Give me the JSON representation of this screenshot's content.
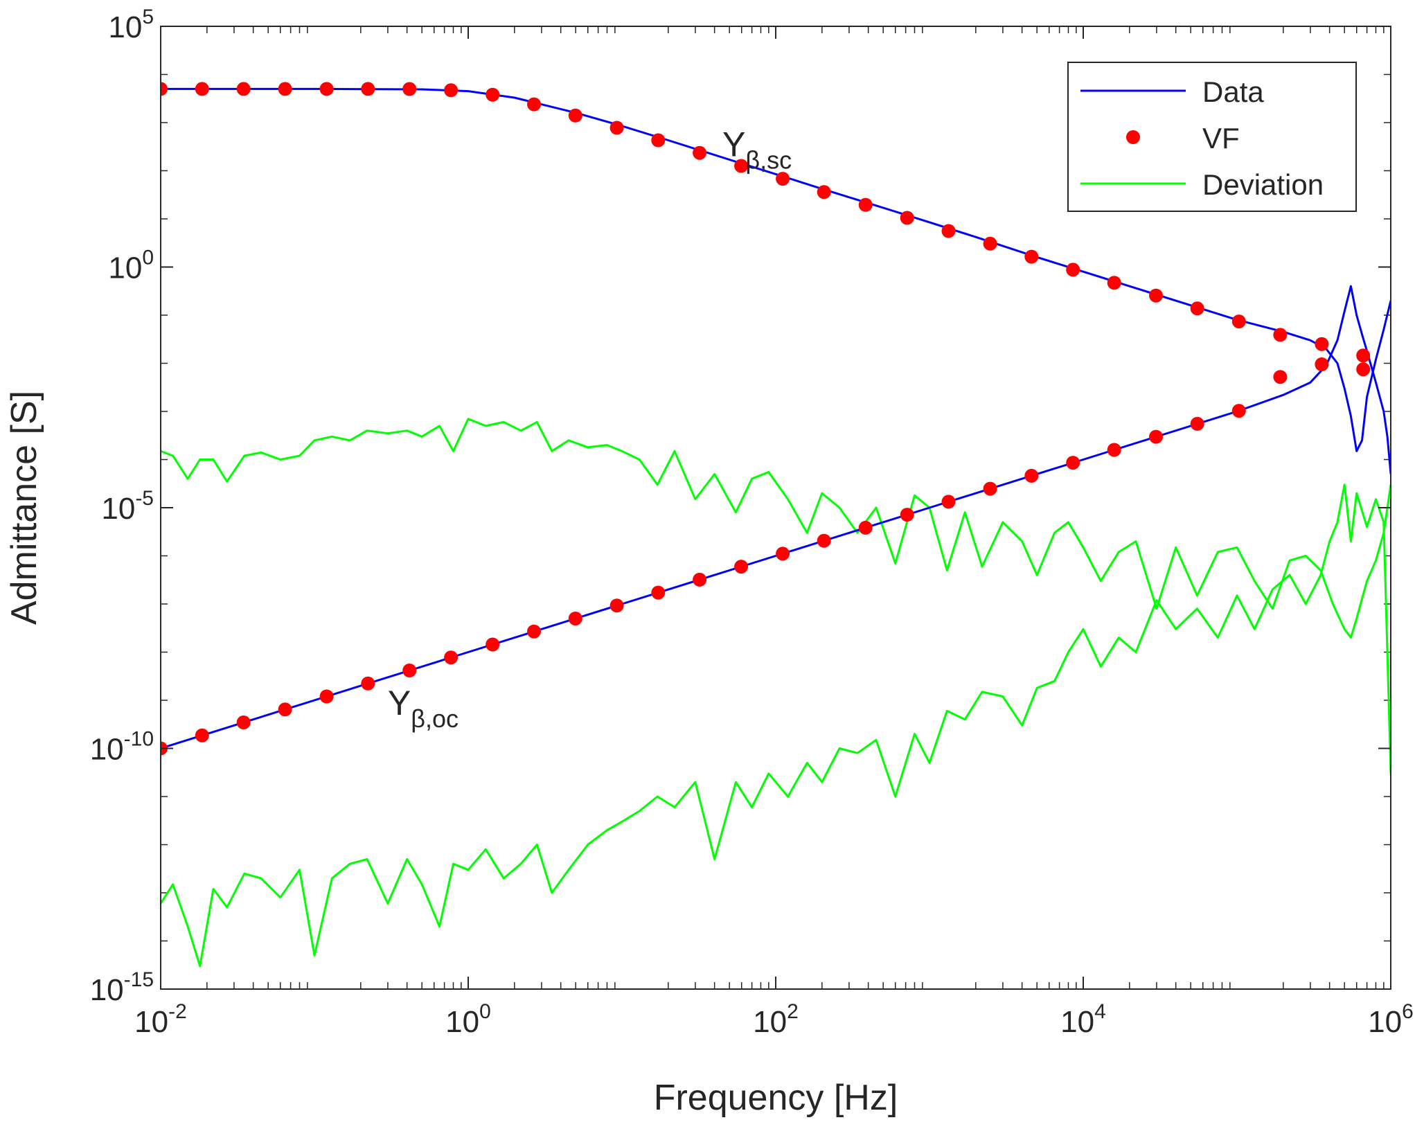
{
  "chart_data": {
    "type": "line",
    "title": "",
    "xlabel": "Frequency [Hz]",
    "ylabel": "Admittance [S]",
    "xscale": "log",
    "yscale": "log",
    "xlim": [
      0.01,
      1000000
    ],
    "ylim": [
      1e-15,
      100000
    ],
    "grid": false,
    "legend_position": "top-right",
    "x_ticks": [
      {
        "value": 0.01,
        "base": "10",
        "exp": "-2"
      },
      {
        "value": 1,
        "base": "10",
        "exp": "0"
      },
      {
        "value": 100,
        "base": "10",
        "exp": "2"
      },
      {
        "value": 10000,
        "base": "10",
        "exp": "4"
      },
      {
        "value": 1000000,
        "base": "10",
        "exp": "6"
      }
    ],
    "y_ticks": [
      {
        "value": 1e-15,
        "base": "10",
        "exp": "-15"
      },
      {
        "value": 1e-10,
        "base": "10",
        "exp": "-10"
      },
      {
        "value": 1e-05,
        "base": "10",
        "exp": "-5"
      },
      {
        "value": 1,
        "base": "10",
        "exp": "0"
      },
      {
        "value": 100000,
        "base": "10",
        "exp": "5"
      }
    ],
    "legend": [
      {
        "label": "Data",
        "style": "line",
        "color": "#0000FF"
      },
      {
        "label": "VF",
        "style": "marker",
        "color": "#FF0000"
      },
      {
        "label": "Deviation",
        "style": "line",
        "color": "#00FF00"
      }
    ],
    "annotations": [
      {
        "name": "y-beta-sc-label",
        "main": "Y",
        "sub": "β,sc",
        "x": 45,
        "y": 200
      },
      {
        "name": "y-beta-oc-label",
        "main": "Y",
        "sub": "β,oc",
        "x": 0.3,
        "y": 5e-10
      }
    ],
    "series": [
      {
        "name": "Data (Yβ,sc)",
        "kind": "line",
        "color": "#0000FF",
        "x": [
          0.01,
          0.1,
          0.5,
          1,
          2,
          5,
          10,
          20,
          50,
          100,
          200,
          500,
          1000,
          2000,
          5000,
          10000,
          20000,
          50000,
          100000,
          200000,
          300000,
          380000,
          450000,
          500000,
          550000,
          600000,
          650000,
          700000,
          800000,
          900000,
          1000000
        ],
        "y": [
          5000,
          5000,
          4900,
          4500,
          3300,
          1600,
          850,
          430,
          170,
          85,
          42,
          17,
          8.5,
          4.2,
          1.6,
          0.8,
          0.4,
          0.16,
          0.08,
          0.045,
          0.03,
          0.02,
          0.01,
          0.003,
          0.0008,
          0.00015,
          0.00025,
          0.002,
          0.012,
          0.05,
          0.2
        ]
      },
      {
        "name": "Data (Yβ,oc)",
        "kind": "line",
        "color": "#0000FF",
        "x": [
          0.01,
          0.1,
          1,
          10,
          100,
          1000,
          10000,
          100000,
          200000,
          300000,
          380000,
          450000,
          500000,
          550000,
          600000,
          650000,
          700000,
          800000,
          900000,
          950000,
          1000000
        ],
        "y": [
          1e-10,
          1e-09,
          1e-08,
          1e-07,
          1e-06,
          1e-05,
          0.0001,
          0.001,
          0.0022,
          0.004,
          0.009,
          0.03,
          0.12,
          0.4,
          0.1,
          0.04,
          0.018,
          0.004,
          0.001,
          0.0003,
          5e-05
        ]
      },
      {
        "name": "VF (Yβ,sc)",
        "kind": "markers",
        "color": "#FF0000",
        "x": [
          0.01,
          0.0186,
          0.0346,
          0.0644,
          0.12,
          0.223,
          0.415,
          0.772,
          1.44,
          2.68,
          4.98,
          9.26,
          17.2,
          32.0,
          59.6,
          111,
          206,
          384,
          715,
          1330,
          2480,
          4610,
          8580,
          15900,
          29700,
          55200,
          103000,
          191000,
          356000,
          662000
        ],
        "y": [
          5000,
          5000,
          5000,
          5000,
          5000,
          5000,
          4980,
          4700,
          3800,
          2400,
          1400,
          780,
          430,
          235,
          126,
          68,
          36,
          19.5,
          10.5,
          5.6,
          3.05,
          1.64,
          0.88,
          0.47,
          0.255,
          0.138,
          0.074,
          0.039,
          0.0095,
          0.0145
        ]
      },
      {
        "name": "VF (Yβ,oc)",
        "kind": "markers",
        "color": "#FF0000",
        "x": [
          0.01,
          0.0186,
          0.0346,
          0.0644,
          0.12,
          0.223,
          0.415,
          0.772,
          1.44,
          2.68,
          4.98,
          9.26,
          17.2,
          32.0,
          59.6,
          111,
          206,
          384,
          715,
          1330,
          2480,
          4610,
          8580,
          15900,
          29700,
          55200,
          103000,
          191000,
          356000,
          662000
        ],
        "y": [
          1e-10,
          1.86e-10,
          3.46e-10,
          6.44e-10,
          1.2e-09,
          2.23e-09,
          4.15e-09,
          7.72e-09,
          1.44e-08,
          2.68e-08,
          4.98e-08,
          9.26e-08,
          1.72e-07,
          3.2e-07,
          5.96e-07,
          1.11e-06,
          2.06e-06,
          3.84e-06,
          7.15e-06,
          1.33e-05,
          2.48e-05,
          4.61e-05,
          8.58e-05,
          0.000159,
          0.000297,
          0.000552,
          0.00103,
          0.0052,
          0.025,
          0.0075
        ]
      },
      {
        "name": "Deviation (Yβ,sc)",
        "kind": "line",
        "color": "#00FF00",
        "x": [
          0.01,
          0.012,
          0.015,
          0.018,
          0.022,
          0.027,
          0.035,
          0.045,
          0.06,
          0.08,
          0.1,
          0.13,
          0.17,
          0.22,
          0.3,
          0.4,
          0.5,
          0.65,
          0.8,
          1,
          1.3,
          1.7,
          2.2,
          2.8,
          3.5,
          4.5,
          6,
          8,
          10,
          13,
          17,
          22,
          30,
          40,
          55,
          70,
          90,
          120,
          160,
          200,
          260,
          340,
          450,
          600,
          800,
          1000,
          1300,
          1700,
          2200,
          3000,
          4000,
          5000,
          6500,
          8000,
          10000,
          13000,
          17000,
          22000,
          30000,
          40000,
          55000,
          75000,
          100000,
          130000,
          170000,
          220000,
          280000,
          350000,
          420000,
          500000,
          550000,
          600000,
          700000,
          800000,
          900000,
          1000000
        ],
        "y": [
          0.00015,
          0.00012,
          4e-05,
          0.0001,
          0.0001,
          3.5e-05,
          0.00012,
          0.00014,
          0.0001,
          0.00012,
          0.00025,
          0.0003,
          0.00025,
          0.0004,
          0.00035,
          0.0004,
          0.0003,
          0.0005,
          0.00015,
          0.0007,
          0.0005,
          0.0006,
          0.0004,
          0.0006,
          0.00015,
          0.00025,
          0.00018,
          0.0002,
          0.00015,
          0.0001,
          3e-05,
          0.00015,
          1.5e-05,
          5e-05,
          8e-06,
          4e-05,
          5.5e-05,
          1.5e-05,
          3e-06,
          2e-05,
          1e-05,
          3e-06,
          1e-05,
          7e-07,
          1.8e-05,
          1e-05,
          5e-07,
          8e-06,
          6e-07,
          5e-06,
          2e-06,
          4e-07,
          3e-06,
          5e-06,
          1.5e-06,
          3e-07,
          1.2e-06,
          2e-06,
          8e-08,
          1.5e-06,
          1.5e-07,
          1.2e-06,
          1.5e-06,
          3e-07,
          8e-08,
          8e-07,
          1e-06,
          5e-07,
          1e-07,
          3e-08,
          2e-08,
          5e-08,
          3e-07,
          8e-07,
          3e-06,
          3e-05
        ]
      },
      {
        "name": "Deviation (Yβ,oc)",
        "kind": "line",
        "color": "#00FF00",
        "x": [
          0.01,
          0.012,
          0.015,
          0.018,
          0.022,
          0.027,
          0.035,
          0.045,
          0.06,
          0.08,
          0.1,
          0.13,
          0.17,
          0.22,
          0.3,
          0.4,
          0.5,
          0.65,
          0.8,
          1,
          1.3,
          1.7,
          2.2,
          2.8,
          3.5,
          4.5,
          6,
          8,
          10,
          13,
          17,
          22,
          30,
          40,
          55,
          70,
          90,
          120,
          160,
          200,
          260,
          340,
          450,
          600,
          800,
          1000,
          1300,
          1700,
          2200,
          3000,
          4000,
          5000,
          6500,
          8000,
          10000,
          13000,
          17000,
          22000,
          30000,
          40000,
          55000,
          75000,
          100000,
          130000,
          170000,
          220000,
          280000,
          350000,
          400000,
          450000,
          500000,
          550000,
          600000,
          700000,
          800000,
          900000,
          1000000
        ],
        "y": [
          6e-14,
          1.5e-13,
          2e-14,
          3e-15,
          1.2e-13,
          5e-14,
          2.5e-13,
          2e-13,
          8e-14,
          3e-13,
          5e-15,
          2e-13,
          4e-13,
          5e-13,
          6e-14,
          5e-13,
          1.5e-13,
          2e-14,
          4e-13,
          3e-13,
          8e-13,
          2e-13,
          4e-13,
          1e-12,
          1e-13,
          3e-13,
          1e-12,
          2e-12,
          3e-12,
          5e-12,
          1e-11,
          6e-12,
          2e-11,
          5e-13,
          2e-11,
          6e-12,
          3e-11,
          1e-11,
          5e-11,
          2e-11,
          1e-10,
          8e-11,
          1.5e-10,
          1e-11,
          2e-10,
          5e-11,
          6e-10,
          4e-10,
          1.5e-09,
          1.2e-09,
          3e-10,
          1.8e-09,
          2.5e-09,
          1e-08,
          3e-08,
          5e-09,
          2e-08,
          1e-08,
          1.2e-07,
          3e-08,
          8e-08,
          2e-08,
          1.5e-07,
          3e-08,
          2e-07,
          4e-07,
          1e-07,
          4e-07,
          2e-06,
          5e-06,
          3e-05,
          2e-06,
          2e-05,
          4e-06,
          1.5e-05,
          5e-06,
          3e-11
        ]
      }
    ]
  }
}
